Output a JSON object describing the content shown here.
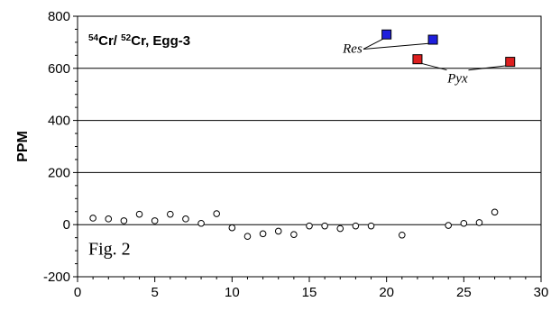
{
  "chart_data": {
    "type": "scatter",
    "title": {
      "sup1": "54",
      "part1": "Cr/ ",
      "sup2": "52",
      "part2": "Cr, Egg-3"
    },
    "xlabel": "",
    "ylabel": "PPM",
    "xlim": [
      0,
      30
    ],
    "ylim": [
      -200,
      800
    ],
    "xticks": [
      0,
      5,
      10,
      15,
      20,
      25,
      30
    ],
    "yticks": [
      -200,
      0,
      200,
      400,
      600,
      800
    ],
    "xtick_labels": [
      "0",
      "5",
      "10",
      "15",
      "20",
      "25",
      "30"
    ],
    "ytick_labels": [
      "-200",
      "0",
      "200",
      "400",
      "600",
      "800"
    ],
    "gridlines_y": [
      200,
      400,
      600
    ],
    "annotation": "Fig. 2",
    "series": [
      {
        "marker": "open-circle",
        "color": "#000000",
        "points": [
          [
            1,
            25
          ],
          [
            2,
            22
          ],
          [
            3,
            15
          ],
          [
            4,
            40
          ],
          [
            5,
            15
          ],
          [
            6,
            40
          ],
          [
            7,
            22
          ],
          [
            8,
            5
          ],
          [
            9,
            42
          ],
          [
            10,
            -12
          ],
          [
            11,
            -45
          ],
          [
            12,
            -35
          ],
          [
            13,
            -25
          ],
          [
            14,
            -38
          ],
          [
            15,
            -5
          ],
          [
            16,
            -5
          ],
          [
            17,
            -15
          ],
          [
            18,
            -5
          ],
          [
            19,
            -5
          ],
          [
            21,
            -40
          ],
          [
            24,
            -3
          ],
          [
            25,
            5
          ],
          [
            26,
            8
          ],
          [
            27,
            48
          ]
        ]
      },
      {
        "name": "Res",
        "marker": "square",
        "color": "#1f1fdd",
        "points": [
          [
            20,
            730
          ],
          [
            23,
            710
          ]
        ]
      },
      {
        "name": "Pyx",
        "marker": "square",
        "color": "#dd1f1f",
        "points": [
          [
            22,
            635
          ],
          [
            28,
            625
          ]
        ]
      }
    ],
    "labels": {
      "Res": {
        "anchor": [
          17.8,
          660
        ]
      },
      "Pyx": {
        "anchor": [
          24.6,
          545
        ]
      }
    }
  }
}
